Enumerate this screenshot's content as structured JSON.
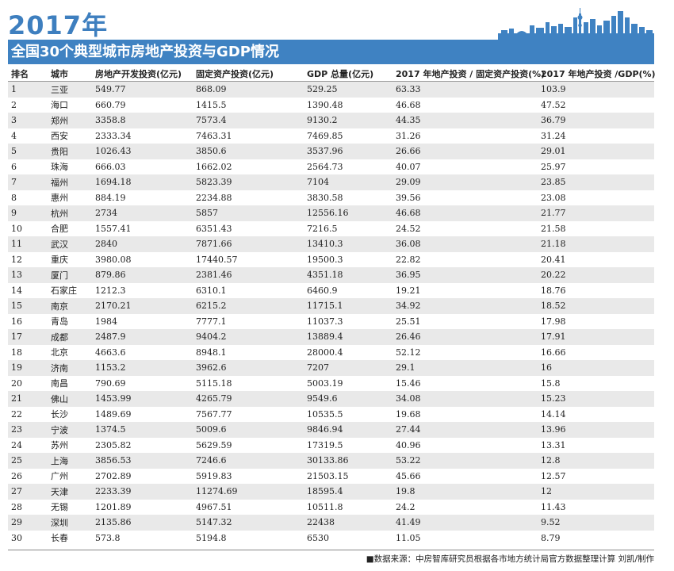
{
  "header": {
    "year": "2017年",
    "title": "全国30个典型城市房地产投资与GDP情况"
  },
  "table": {
    "columns": [
      "排名",
      "城市",
      "房地产开发投资(亿元)",
      "固定资产投资(亿元)",
      "GDP 总量(亿元)",
      "2017 年地产投资 / 固定资产投资(%)",
      "2017 年地产投资 /GDP(%)"
    ],
    "rows": [
      [
        "1",
        "三亚",
        "549.77",
        "868.09",
        "529.25",
        "63.33",
        "103.9"
      ],
      [
        "2",
        "海口",
        "660.79",
        "1415.5",
        "1390.48",
        "46.68",
        "47.52"
      ],
      [
        "3",
        "郑州",
        "3358.8",
        "7573.4",
        "9130.2",
        "44.35",
        "36.79"
      ],
      [
        "4",
        "西安",
        "2333.34",
        "7463.31",
        "7469.85",
        "31.26",
        "31.24"
      ],
      [
        "5",
        "贵阳",
        "1026.43",
        "3850.6",
        "3537.96",
        "26.66",
        "29.01"
      ],
      [
        "6",
        "珠海",
        "666.03",
        "1662.02",
        "2564.73",
        "40.07",
        "25.97"
      ],
      [
        "7",
        "福州",
        "1694.18",
        "5823.39",
        "7104",
        "29.09",
        "23.85"
      ],
      [
        "8",
        "惠州",
        "884.19",
        "2234.88",
        "3830.58",
        "39.56",
        "23.08"
      ],
      [
        "9",
        "杭州",
        "2734",
        "5857",
        "12556.16",
        "46.68",
        "21.77"
      ],
      [
        "10",
        "合肥",
        "1557.41",
        "6351.43",
        "7216.5",
        "24.52",
        "21.58"
      ],
      [
        "11",
        "武汉",
        "2840",
        "7871.66",
        "13410.3",
        "36.08",
        "21.18"
      ],
      [
        "12",
        "重庆",
        "3980.08",
        "17440.57",
        "19500.3",
        "22.82",
        "20.41"
      ],
      [
        "13",
        "厦门",
        "879.86",
        "2381.46",
        "4351.18",
        "36.95",
        "20.22"
      ],
      [
        "14",
        "石家庄",
        "1212.3",
        "6310.1",
        "6460.9",
        "19.21",
        "18.76"
      ],
      [
        "15",
        "南京",
        "2170.21",
        "6215.2",
        "11715.1",
        "34.92",
        "18.52"
      ],
      [
        "16",
        "青岛",
        "1984",
        "7777.1",
        "11037.3",
        "25.51",
        "17.98"
      ],
      [
        "17",
        "成都",
        "2487.9",
        "9404.2",
        "13889.4",
        "26.46",
        "17.91"
      ],
      [
        "18",
        "北京",
        "4663.6",
        "8948.1",
        "28000.4",
        "52.12",
        "16.66"
      ],
      [
        "19",
        "济南",
        "1153.2",
        "3962.6",
        "7207",
        "29.1",
        "16"
      ],
      [
        "20",
        "南昌",
        "790.69",
        "5115.18",
        "5003.19",
        "15.46",
        "15.8"
      ],
      [
        "21",
        "佛山",
        "1453.99",
        "4265.79",
        "9549.6",
        "34.08",
        "15.23"
      ],
      [
        "22",
        "长沙",
        "1489.69",
        "7567.77",
        "10535.5",
        "19.68",
        "14.14"
      ],
      [
        "23",
        "宁波",
        "1374.5",
        "5009.6",
        "9846.94",
        "27.44",
        "13.96"
      ],
      [
        "24",
        "苏州",
        "2305.82",
        "5629.59",
        "17319.5",
        "40.96",
        "13.31"
      ],
      [
        "25",
        "上海",
        "3856.53",
        "7246.6",
        "30133.86",
        "53.22",
        "12.8"
      ],
      [
        "26",
        "广州",
        "2702.89",
        "5919.83",
        "21503.15",
        "45.66",
        "12.57"
      ],
      [
        "27",
        "天津",
        "2233.39",
        "11274.69",
        "18595.4",
        "19.8",
        "12"
      ],
      [
        "28",
        "无锡",
        "1201.89",
        "4967.51",
        "10511.8",
        "24.2",
        "11.43"
      ],
      [
        "29",
        "深圳",
        "2135.86",
        "5147.32",
        "22438",
        "41.49",
        "9.52"
      ],
      [
        "30",
        "长春",
        "573.8",
        "5194.8",
        "6530",
        "11.05",
        "8.79"
      ]
    ]
  },
  "footer": {
    "source": "■数据来源：中房智库研究员根据各市地方统计局官方数据整理计算 刘凯/制作"
  },
  "colors": {
    "accent": "#3f82c2",
    "row_shade": "#e9e9e9"
  },
  "icons": {
    "skyline": "city-skyline-illustration"
  }
}
